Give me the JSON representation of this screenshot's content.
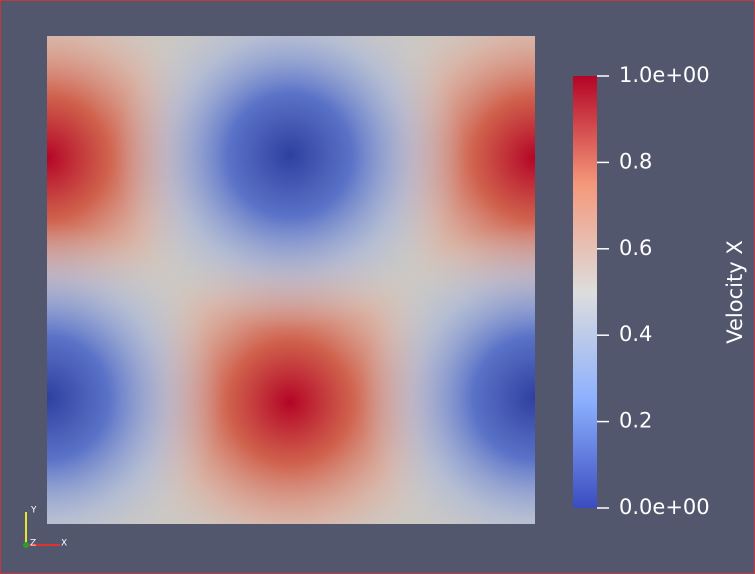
{
  "colorbar": {
    "title": "Velocity X",
    "range": [
      0,
      1
    ],
    "ticks": [
      {
        "value": 1,
        "label": "1.0e+00"
      },
      0.8,
      0.6,
      0.4,
      0.2,
      {
        "value": 0,
        "label": "0.0e+00"
      }
    ]
  },
  "axes_triad": {
    "x": "X",
    "y": "Y",
    "z": "Z"
  }
}
